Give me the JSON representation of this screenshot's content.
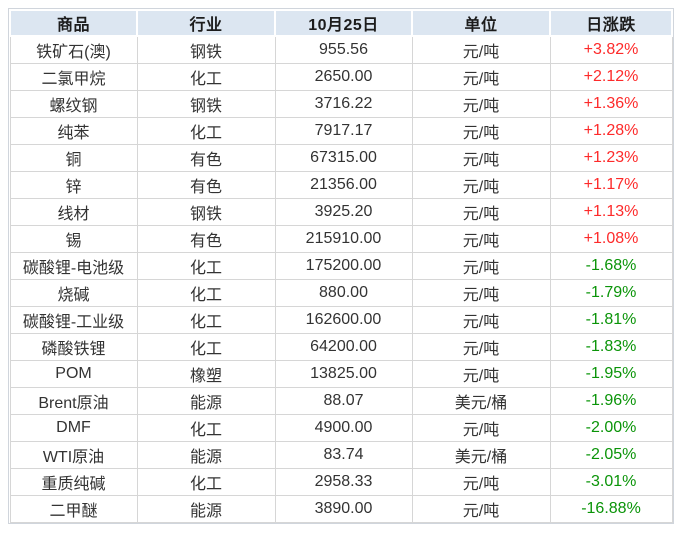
{
  "colors": {
    "positive_change": "#fd2a2a",
    "negative_change": "#0a9408",
    "header_background": "#dce6f1",
    "grid_border": "#d6d6d6",
    "header_text": "#1c1c1c",
    "body_text": "#333333",
    "page_background": "#ffffff"
  },
  "chart_data": {
    "type": "table",
    "title": "",
    "columns": [
      "商品",
      "行业",
      "10月25日",
      "单位",
      "日涨跌"
    ],
    "rows": [
      {
        "commodity": "铁矿石(澳)",
        "industry": "钢铁",
        "price": "955.56",
        "unit": "元/吨",
        "change": "+3.82%"
      },
      {
        "commodity": "二氯甲烷",
        "industry": "化工",
        "price": "2650.00",
        "unit": "元/吨",
        "change": "+2.12%"
      },
      {
        "commodity": "螺纹钢",
        "industry": "钢铁",
        "price": "3716.22",
        "unit": "元/吨",
        "change": "+1.36%"
      },
      {
        "commodity": "纯苯",
        "industry": "化工",
        "price": "7917.17",
        "unit": "元/吨",
        "change": "+1.28%"
      },
      {
        "commodity": "铜",
        "industry": "有色",
        "price": "67315.00",
        "unit": "元/吨",
        "change": "+1.23%"
      },
      {
        "commodity": "锌",
        "industry": "有色",
        "price": "21356.00",
        "unit": "元/吨",
        "change": "+1.17%"
      },
      {
        "commodity": "线材",
        "industry": "钢铁",
        "price": "3925.20",
        "unit": "元/吨",
        "change": "+1.13%"
      },
      {
        "commodity": "锡",
        "industry": "有色",
        "price": "215910.00",
        "unit": "元/吨",
        "change": "+1.08%"
      },
      {
        "commodity": "碳酸锂-电池级",
        "industry": "化工",
        "price": "175200.00",
        "unit": "元/吨",
        "change": "-1.68%"
      },
      {
        "commodity": "烧碱",
        "industry": "化工",
        "price": "880.00",
        "unit": "元/吨",
        "change": "-1.79%"
      },
      {
        "commodity": "碳酸锂-工业级",
        "industry": "化工",
        "price": "162600.00",
        "unit": "元/吨",
        "change": "-1.81%"
      },
      {
        "commodity": "磷酸铁锂",
        "industry": "化工",
        "price": "64200.00",
        "unit": "元/吨",
        "change": "-1.83%"
      },
      {
        "commodity": "POM",
        "industry": "橡塑",
        "price": "13825.00",
        "unit": "元/吨",
        "change": "-1.95%"
      },
      {
        "commodity": "Brent原油",
        "industry": "能源",
        "price": "88.07",
        "unit": "美元/桶",
        "change": "-1.96%"
      },
      {
        "commodity": "DMF",
        "industry": "化工",
        "price": "4900.00",
        "unit": "元/吨",
        "change": "-2.00%"
      },
      {
        "commodity": "WTI原油",
        "industry": "能源",
        "price": "83.74",
        "unit": "美元/桶",
        "change": "-2.05%"
      },
      {
        "commodity": "重质纯碱",
        "industry": "化工",
        "price": "2958.33",
        "unit": "元/吨",
        "change": "-3.01%"
      },
      {
        "commodity": "二甲醚",
        "industry": "能源",
        "price": "3890.00",
        "unit": "元/吨",
        "change": "-16.88%"
      }
    ]
  }
}
